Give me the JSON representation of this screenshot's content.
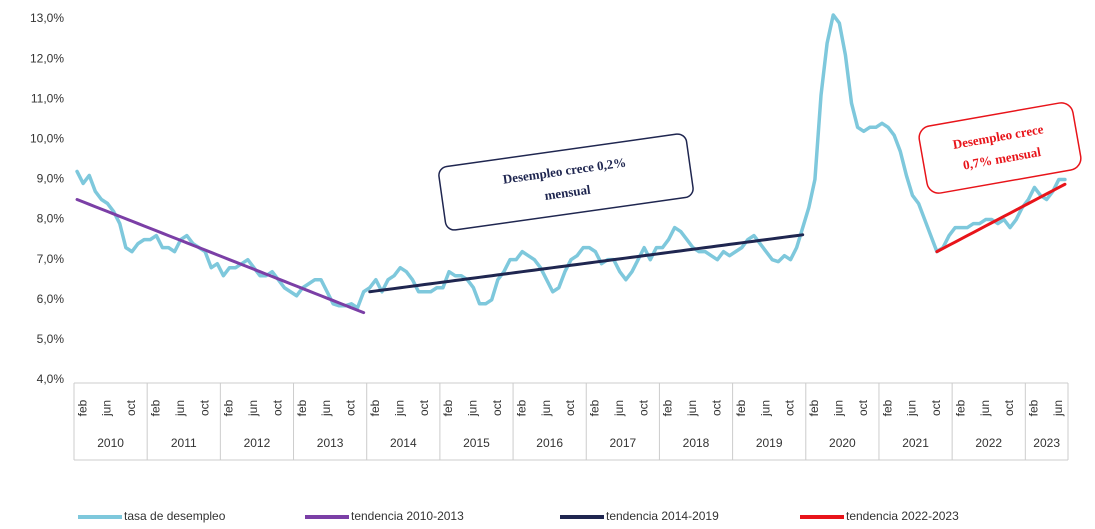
{
  "chart_data": {
    "type": "line",
    "categories": [
      null,
      "feb",
      null,
      null,
      null,
      "jun",
      null,
      null,
      null,
      "oct",
      null,
      null,
      null,
      "feb",
      null,
      null,
      null,
      "jun",
      null,
      null,
      null,
      "oct",
      null,
      null,
      null,
      "feb",
      null,
      null,
      null,
      "jun",
      null,
      null,
      null,
      "oct",
      null,
      null,
      null,
      "feb",
      null,
      null,
      null,
      "jun",
      null,
      null,
      null,
      "oct",
      null,
      null,
      null,
      "feb",
      null,
      null,
      null,
      "jun",
      null,
      null,
      null,
      "oct",
      null,
      null,
      null,
      "feb",
      null,
      null,
      null,
      "jun",
      null,
      null,
      null,
      "oct",
      null,
      null,
      null,
      "feb",
      null,
      null,
      null,
      "jun",
      null,
      null,
      null,
      "oct",
      null,
      null,
      null,
      "feb",
      null,
      null,
      null,
      "jun",
      null,
      null,
      null,
      "oct",
      null,
      null,
      null,
      "feb",
      null,
      null,
      null,
      "jun",
      null,
      null,
      null,
      "oct",
      null,
      null,
      null,
      "feb",
      null,
      null,
      null,
      "jun",
      null,
      null,
      null,
      "oct",
      null,
      null,
      null,
      "feb",
      null,
      null,
      null,
      "jun",
      null,
      null,
      null,
      "oct",
      null,
      null,
      null,
      "feb",
      null,
      null,
      null,
      "jun",
      null,
      null,
      null,
      "oct",
      null,
      null,
      null,
      "feb",
      null,
      null,
      null,
      "jun",
      null,
      null,
      null,
      "oct",
      null,
      null,
      null,
      "feb",
      null,
      null,
      null,
      "jun",
      null
    ],
    "years": [
      "2010",
      "2011",
      "2012",
      "2013",
      "2014",
      "2015",
      "2016",
      "2017",
      "2018",
      "2019",
      "2020",
      "2021",
      "2022",
      "2023"
    ],
    "ylim": [
      4,
      13
    ],
    "yticks": [
      {
        "value": 4,
        "label": "4,0%"
      },
      {
        "value": 5,
        "label": "5,0%"
      },
      {
        "value": 6,
        "label": "6,0%"
      },
      {
        "value": 7,
        "label": "7,0%"
      },
      {
        "value": 8,
        "label": "8,0%"
      },
      {
        "value": 9,
        "label": "9,0%"
      },
      {
        "value": 10,
        "label": "10,0%"
      },
      {
        "value": 11,
        "label": "11,0%"
      },
      {
        "value": 12,
        "label": "12,0%"
      },
      {
        "value": 13,
        "label": "13,0%"
      }
    ],
    "grid": false,
    "legend": "bottom",
    "series": [
      {
        "name": "tasa de desempleo",
        "color": "#7ec8dc",
        "width": 3.5,
        "values": [
          9.2,
          8.9,
          9.1,
          8.7,
          8.5,
          8.4,
          8.2,
          7.9,
          7.3,
          7.2,
          7.4,
          7.5,
          7.5,
          7.6,
          7.3,
          7.3,
          7.2,
          7.5,
          7.6,
          7.4,
          7.3,
          7.2,
          6.8,
          6.9,
          6.6,
          6.8,
          6.8,
          6.9,
          7.0,
          6.8,
          6.6,
          6.6,
          6.7,
          6.5,
          6.3,
          6.2,
          6.1,
          6.3,
          6.4,
          6.5,
          6.5,
          6.2,
          5.9,
          5.85,
          5.85,
          5.9,
          5.8,
          6.2,
          6.3,
          6.5,
          6.2,
          6.5,
          6.6,
          6.8,
          6.7,
          6.5,
          6.2,
          6.2,
          6.2,
          6.3,
          6.3,
          6.7,
          6.6,
          6.6,
          6.5,
          6.3,
          5.9,
          5.9,
          6.0,
          6.5,
          6.7,
          7.0,
          7.0,
          7.2,
          7.1,
          7.0,
          6.8,
          6.5,
          6.2,
          6.3,
          6.7,
          7.0,
          7.1,
          7.3,
          7.3,
          7.2,
          6.9,
          7.0,
          7.0,
          6.7,
          6.5,
          6.7,
          7.0,
          7.3,
          7.0,
          7.3,
          7.3,
          7.5,
          7.8,
          7.7,
          7.5,
          7.3,
          7.2,
          7.2,
          7.1,
          7.0,
          7.2,
          7.1,
          7.2,
          7.3,
          7.5,
          7.6,
          7.4,
          7.2,
          7.0,
          6.95,
          7.1,
          7.0,
          7.3,
          7.8,
          8.3,
          9.0,
          11.1,
          12.4,
          13.1,
          12.9,
          12.1,
          10.9,
          10.3,
          10.2,
          10.3,
          10.3,
          10.4,
          10.3,
          10.1,
          9.7,
          9.1,
          8.6,
          8.4,
          8.0,
          7.6,
          7.2,
          7.3,
          7.6,
          7.8,
          7.8,
          7.8,
          7.9,
          7.9,
          8.0,
          8.0,
          7.9,
          8.0,
          7.8,
          8.0,
          8.3,
          8.5,
          8.8,
          8.6,
          8.5,
          8.7,
          9.0,
          9.0
        ]
      },
      {
        "name": "tendencia 2010-2013",
        "color": "#7b3fa6",
        "width": 3,
        "values": [
          8.5,
          8.44,
          8.38,
          8.32,
          8.26,
          8.2,
          8.14,
          8.08,
          8.02,
          7.96,
          7.9,
          7.84,
          7.78,
          7.72,
          7.66,
          7.6,
          7.54,
          7.48,
          7.42,
          7.36,
          7.3,
          7.24,
          7.18,
          7.12,
          7.06,
          7.0,
          6.94,
          6.88,
          6.82,
          6.76,
          6.7,
          6.64,
          6.58,
          6.52,
          6.46,
          6.4,
          6.34,
          6.28,
          6.22,
          6.16,
          6.1,
          6.04,
          5.98,
          5.92,
          5.86,
          5.8,
          5.74,
          5.68,
          null,
          null,
          null,
          null,
          null,
          null,
          null,
          null,
          null,
          null,
          null,
          null,
          null,
          null,
          null,
          null,
          null,
          null,
          null,
          null,
          null,
          null,
          null,
          null,
          null,
          null,
          null,
          null,
          null,
          null,
          null,
          null,
          null,
          null,
          null,
          null,
          null,
          null,
          null,
          null,
          null,
          null,
          null,
          null,
          null,
          null,
          null,
          null,
          null,
          null,
          null,
          null,
          null,
          null,
          null,
          null,
          null,
          null,
          null,
          null,
          null,
          null,
          null,
          null,
          null,
          null,
          null,
          null,
          null,
          null,
          null,
          null,
          null,
          null,
          null,
          null,
          null,
          null,
          null,
          null,
          null,
          null,
          null,
          null,
          null,
          null,
          null,
          null,
          null,
          null,
          null,
          null,
          null,
          null,
          null,
          null,
          null,
          null,
          null,
          null,
          null,
          null,
          null,
          null,
          null,
          null,
          null,
          null,
          null,
          null,
          null,
          null,
          null,
          null,
          null
        ]
      },
      {
        "name": "tendencia 2014-2019",
        "color": "#1f2650",
        "width": 3,
        "values": [
          null,
          null,
          null,
          null,
          null,
          null,
          null,
          null,
          null,
          null,
          null,
          null,
          null,
          null,
          null,
          null,
          null,
          null,
          null,
          null,
          null,
          null,
          null,
          null,
          null,
          null,
          null,
          null,
          null,
          null,
          null,
          null,
          null,
          null,
          null,
          null,
          null,
          null,
          null,
          null,
          null,
          null,
          null,
          null,
          null,
          null,
          null,
          null,
          6.2,
          6.22,
          6.24,
          6.26,
          6.28,
          6.3,
          6.32,
          6.34,
          6.36,
          6.38,
          6.4,
          6.42,
          6.44,
          6.46,
          6.48,
          6.5,
          6.52,
          6.54,
          6.56,
          6.58,
          6.6,
          6.62,
          6.64,
          6.66,
          6.68,
          6.7,
          6.72,
          6.74,
          6.76,
          6.78,
          6.8,
          6.82,
          6.84,
          6.86,
          6.88,
          6.9,
          6.92,
          6.94,
          6.96,
          6.98,
          7.0,
          7.02,
          7.04,
          7.06,
          7.08,
          7.1,
          7.12,
          7.14,
          7.16,
          7.18,
          7.2,
          7.22,
          7.24,
          7.26,
          7.28,
          7.3,
          7.32,
          7.34,
          7.36,
          7.38,
          7.4,
          7.42,
          7.44,
          7.46,
          7.48,
          7.5,
          7.52,
          7.54,
          7.56,
          7.58,
          7.6,
          7.62,
          null,
          null,
          null,
          null,
          null,
          null,
          null,
          null,
          null,
          null,
          null,
          null,
          null,
          null,
          null,
          null,
          null,
          null,
          null,
          null,
          null,
          null,
          null,
          null,
          null,
          null,
          null,
          null,
          null,
          null,
          null,
          null,
          null,
          null,
          null,
          null,
          null,
          null,
          null,
          null,
          null,
          null,
          null
        ]
      },
      {
        "name": "tendencia 2022-2023",
        "color": "#e8141a",
        "width": 3,
        "values": [
          null,
          null,
          null,
          null,
          null,
          null,
          null,
          null,
          null,
          null,
          null,
          null,
          null,
          null,
          null,
          null,
          null,
          null,
          null,
          null,
          null,
          null,
          null,
          null,
          null,
          null,
          null,
          null,
          null,
          null,
          null,
          null,
          null,
          null,
          null,
          null,
          null,
          null,
          null,
          null,
          null,
          null,
          null,
          null,
          null,
          null,
          null,
          null,
          null,
          null,
          null,
          null,
          null,
          null,
          null,
          null,
          null,
          null,
          null,
          null,
          null,
          null,
          null,
          null,
          null,
          null,
          null,
          null,
          null,
          null,
          null,
          null,
          null,
          null,
          null,
          null,
          null,
          null,
          null,
          null,
          null,
          null,
          null,
          null,
          null,
          null,
          null,
          null,
          null,
          null,
          null,
          null,
          null,
          null,
          null,
          null,
          null,
          null,
          null,
          null,
          null,
          null,
          null,
          null,
          null,
          null,
          null,
          null,
          null,
          null,
          null,
          null,
          null,
          null,
          null,
          null,
          null,
          null,
          null,
          null,
          null,
          null,
          null,
          null,
          null,
          null,
          null,
          null,
          null,
          null,
          null,
          null,
          null,
          null,
          null,
          null,
          null,
          null,
          null,
          null,
          null,
          7.2,
          7.28,
          7.36,
          7.44,
          7.52,
          7.6,
          7.68,
          7.76,
          7.84,
          7.92,
          8.0,
          8.08,
          8.16,
          8.24,
          8.32,
          8.4,
          8.48,
          8.56,
          8.64,
          8.72,
          8.8,
          8.88
        ]
      }
    ],
    "annotations": [
      {
        "text": [
          "Desempleo crece 0,2%",
          "mensual"
        ],
        "color": "#1f2650"
      },
      {
        "text": [
          "Desempleo crece",
          "0,7% mensual"
        ],
        "color": "#e8141a"
      }
    ]
  }
}
